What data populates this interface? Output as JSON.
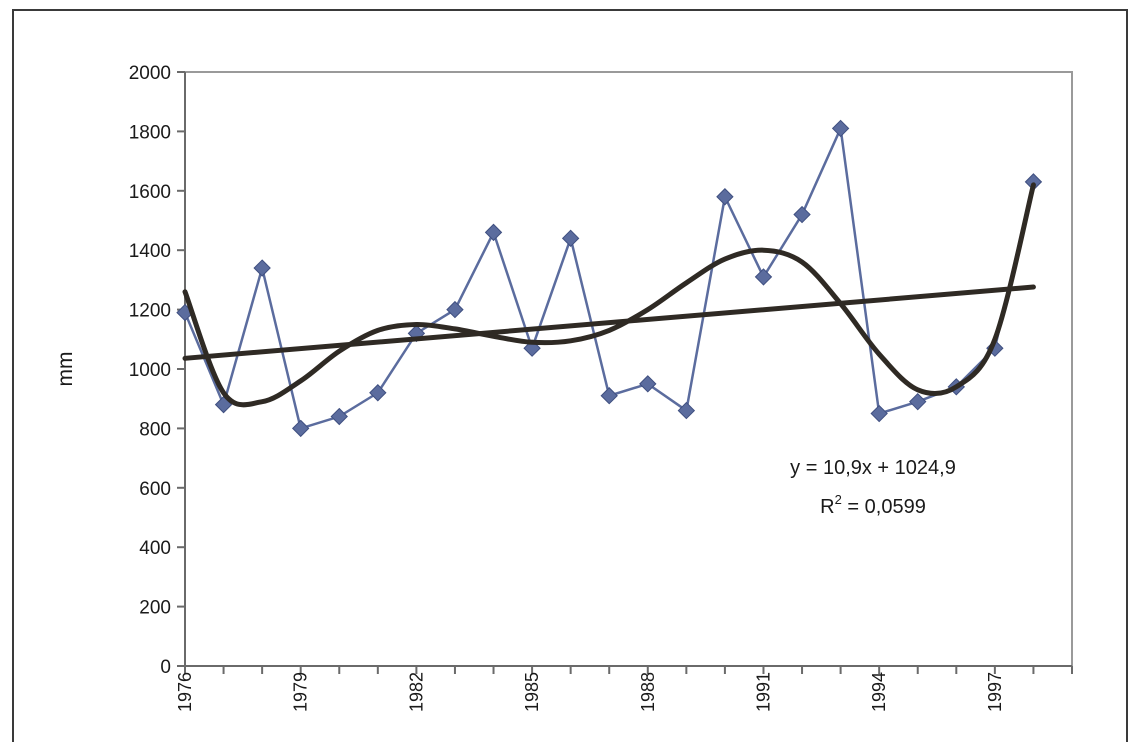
{
  "chart_data": {
    "type": "line",
    "title": "",
    "xlabel": "",
    "ylabel": "mm",
    "ylim": [
      0,
      2000
    ],
    "xlim": [
      1976,
      1999
    ],
    "y_ticks": [
      0,
      200,
      400,
      600,
      800,
      1000,
      1200,
      1400,
      1600,
      1800,
      2000
    ],
    "y_tick_labels": [
      "0",
      "200",
      "400",
      "600",
      "800",
      "1000",
      "1200",
      "1400",
      "1600",
      "1800",
      "2000"
    ],
    "x_tick_labels": [
      "1976",
      "1979",
      "1982",
      "1985",
      "1988",
      "1991",
      "1994",
      "1997"
    ],
    "grid": false,
    "legend": "none",
    "colors": {
      "series": "#5b6c9e",
      "trend": "#2f2a24",
      "axis": "#6a6a6a",
      "frame": "#3a3a3a"
    },
    "series": [
      {
        "x": [
          1976,
          1977,
          1978,
          1979,
          1980,
          1981,
          1982,
          1983,
          1984,
          1985,
          1986,
          1987,
          1988,
          1989,
          1990,
          1991,
          1992,
          1993,
          1994,
          1995,
          1996,
          1997,
          1998
        ],
        "values": [
          1190,
          880,
          1340,
          800,
          840,
          920,
          1120,
          1200,
          1460,
          1070,
          1440,
          910,
          950,
          860,
          1580,
          1310,
          1520,
          1810,
          850,
          890,
          940,
          1070,
          1630
        ]
      }
    ],
    "trendlines": [
      {
        "type": "linear",
        "x": [
          1976,
          1998
        ],
        "y": [
          1036,
          1276
        ]
      },
      {
        "type": "polynomial",
        "x": [
          1976,
          1977,
          1978,
          1979,
          1980,
          1981,
          1982,
          1983,
          1984,
          1985,
          1986,
          1987,
          1988,
          1989,
          1990,
          1991,
          1992,
          1993,
          1994,
          1995,
          1996,
          1997,
          1998
        ],
        "y": [
          1260,
          920,
          890,
          960,
          1060,
          1130,
          1150,
          1135,
          1110,
          1090,
          1095,
          1130,
          1200,
          1290,
          1370,
          1400,
          1360,
          1220,
          1050,
          930,
          940,
          1100,
          1620
        ]
      }
    ],
    "annotations": [
      "y = 10,9x + 1024,9",
      "R",
      "2",
      " = 0,0599"
    ]
  }
}
